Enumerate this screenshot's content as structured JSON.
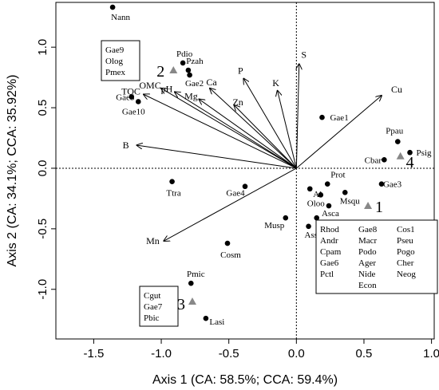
{
  "chart_data": {
    "type": "scatter",
    "title": "",
    "xlabel": "Axis 1 (CA: 58.5%; CCA: 59.4%)",
    "ylabel": "Axis 2 (CA: 34.1%; CCA: 35.92%)",
    "xlim": [
      -1.78,
      1.02
    ],
    "ylim": [
      -1.41,
      1.37
    ],
    "xticks": [
      -1.5,
      -1.0,
      -0.5,
      0.0,
      0.5,
      1.0
    ],
    "yticks": [
      -1.0,
      -0.5,
      0.0,
      0.5,
      1.0
    ],
    "xtick_labels": [
      "-1.5",
      "-1.0",
      "-0.5",
      "0.0",
      "0.5",
      "1.0"
    ],
    "ytick_labels": [
      "-1.0",
      "-0.5",
      "0.0",
      "0.5",
      "1.0"
    ],
    "grid": false,
    "reference_lines": {
      "x": 0,
      "y": 0,
      "style": "dotted"
    },
    "sites": [
      {
        "label": "Nann",
        "x": -1.36,
        "y": 1.33
      },
      {
        "label": "Pdio",
        "x": -0.84,
        "y": 0.87
      },
      {
        "label": "Pzah",
        "x": -0.8,
        "y": 0.81
      },
      {
        "label": "Gae2",
        "x": -0.79,
        "y": 0.77
      },
      {
        "label": "Gae5",
        "x": -1.22,
        "y": 0.59
      },
      {
        "label": "Gae10",
        "x": -1.17,
        "y": 0.55
      },
      {
        "label": "Gae1",
        "x": 0.19,
        "y": 0.42
      },
      {
        "label": "Ppau",
        "x": 0.75,
        "y": 0.22
      },
      {
        "label": "Psig",
        "x": 0.84,
        "y": 0.13
      },
      {
        "label": "Cbar",
        "x": 0.65,
        "y": 0.07
      },
      {
        "label": "Gae3",
        "x": 0.63,
        "y": -0.13
      },
      {
        "label": "Prot",
        "x": 0.23,
        "y": -0.13
      },
      {
        "label": "Al",
        "x": 0.1,
        "y": -0.17
      },
      {
        "label": "Msqu",
        "x": 0.36,
        "y": -0.2
      },
      {
        "label": "Oloo",
        "x": 0.18,
        "y": -0.22
      },
      {
        "label": "Asca",
        "x": 0.24,
        "y": -0.31
      },
      {
        "label": "Bino",
        "x": 0.15,
        "y": -0.41
      },
      {
        "label": "Assp",
        "x": 0.09,
        "y": -0.48
      },
      {
        "label": "Ttra",
        "x": -0.92,
        "y": -0.11
      },
      {
        "label": "Gae4",
        "x": -0.38,
        "y": -0.15
      },
      {
        "label": "Musp",
        "x": -0.08,
        "y": -0.41
      },
      {
        "label": "Cosm",
        "x": -0.51,
        "y": -0.62
      },
      {
        "label": "Pmic",
        "x": -0.78,
        "y": -0.95
      },
      {
        "label": "Lasi",
        "x": -0.67,
        "y": -1.24
      }
    ],
    "environmental_vectors": [
      {
        "label": "S",
        "x": 0.02,
        "y": 0.86
      },
      {
        "label": "Cu",
        "x": 0.63,
        "y": 0.6
      },
      {
        "label": "K",
        "x": -0.14,
        "y": 0.64
      },
      {
        "label": "P",
        "x": -0.39,
        "y": 0.74
      },
      {
        "label": "Ca",
        "x": -0.64,
        "y": 0.66
      },
      {
        "label": "Mg",
        "x": -0.72,
        "y": 0.57
      },
      {
        "label": "Zn",
        "x": -0.46,
        "y": 0.52
      },
      {
        "label": "pH",
        "x": -0.9,
        "y": 0.63
      },
      {
        "label": "OMC",
        "x": -1.0,
        "y": 0.66
      },
      {
        "label": "TOC",
        "x": -1.13,
        "y": 0.61
      },
      {
        "label": "B",
        "x": -1.18,
        "y": 0.19
      },
      {
        "label": "Mn",
        "x": -0.98,
        "y": -0.6
      }
    ],
    "group_centroids": [
      {
        "label": "1",
        "x": 0.53,
        "y": -0.31
      },
      {
        "label": "2",
        "x": -0.91,
        "y": 0.81
      },
      {
        "label": "3",
        "x": -0.77,
        "y": -1.1
      },
      {
        "label": "4",
        "x": 0.77,
        "y": 0.1
      }
    ],
    "group_boxes": [
      {
        "group": "2",
        "columns": [
          [
            "Gae9",
            "Olog",
            "Pmex"
          ]
        ]
      },
      {
        "group": "1",
        "columns": [
          [
            "Rhod",
            "Andr",
            "Cpam",
            "Gae6",
            "Pctl"
          ],
          [
            "Gae8",
            "Macr",
            "Podo",
            "Ager",
            "Nide",
            "Econ"
          ],
          [
            "Cos1",
            "Pseu",
            "Pogo",
            "Cher",
            "Neog"
          ]
        ]
      },
      {
        "group": "3",
        "columns": [
          [
            "Cgut",
            "Gae7",
            "Pbic"
          ]
        ]
      }
    ]
  }
}
